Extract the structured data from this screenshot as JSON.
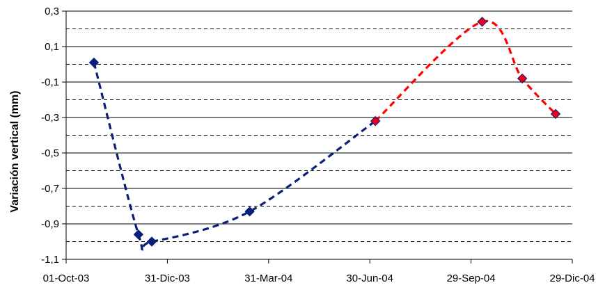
{
  "chart_data": {
    "type": "line",
    "title": "",
    "xlabel": "",
    "ylabel": "Variación vertical (mm)",
    "ylim": [
      -1.1,
      0.3
    ],
    "xlim": [
      "2003-10-01",
      "2004-12-29"
    ],
    "y_ticks": [
      "0,3",
      "0,1",
      "-0,1",
      "-0,3",
      "-0,5",
      "-0,7",
      "-0,9",
      "-1,1"
    ],
    "y_tick_values": [
      0.3,
      0.1,
      -0.1,
      -0.3,
      -0.5,
      -0.7,
      -0.9,
      -1.1
    ],
    "x_ticks": [
      "01-Oct-03",
      "31-Dic-03",
      "31-Mar-04",
      "30-Jun-04",
      "29-Sep-04",
      "29-Dic-04"
    ],
    "x_tick_dates": [
      "2003-10-01",
      "2003-12-31",
      "2004-03-31",
      "2004-06-30",
      "2004-09-29",
      "2004-12-29"
    ],
    "gridlines": {
      "solid": [
        0.3,
        0.1,
        -0.1,
        -0.3,
        -0.5,
        -0.7,
        -0.9,
        -1.1
      ],
      "dashed": [
        0.2,
        0.0,
        -0.2,
        -0.4,
        -0.6,
        -0.8,
        -1.0
      ]
    },
    "legend": "none",
    "series": [
      {
        "color": "#0b1f7a",
        "marker_color": "#0b1f7a",
        "line_style": "dashed",
        "points": [
          {
            "x": "2003-10-26",
            "y": 0.01
          },
          {
            "x": "2003-12-05",
            "y": -0.96
          },
          {
            "x": "2003-12-17",
            "y": -1.0
          },
          {
            "x": "2004-03-14",
            "y": -0.83
          },
          {
            "x": "2004-07-05",
            "y": -0.32
          }
        ]
      },
      {
        "color": "#ff0000",
        "marker_color": "#e8001a",
        "line_style": "dashed",
        "points": [
          {
            "x": "2004-07-05",
            "y": -0.32
          },
          {
            "x": "2004-10-09",
            "y": 0.24
          },
          {
            "x": "2004-11-14",
            "y": -0.08
          },
          {
            "x": "2004-12-14",
            "y": -0.28
          }
        ]
      }
    ]
  }
}
